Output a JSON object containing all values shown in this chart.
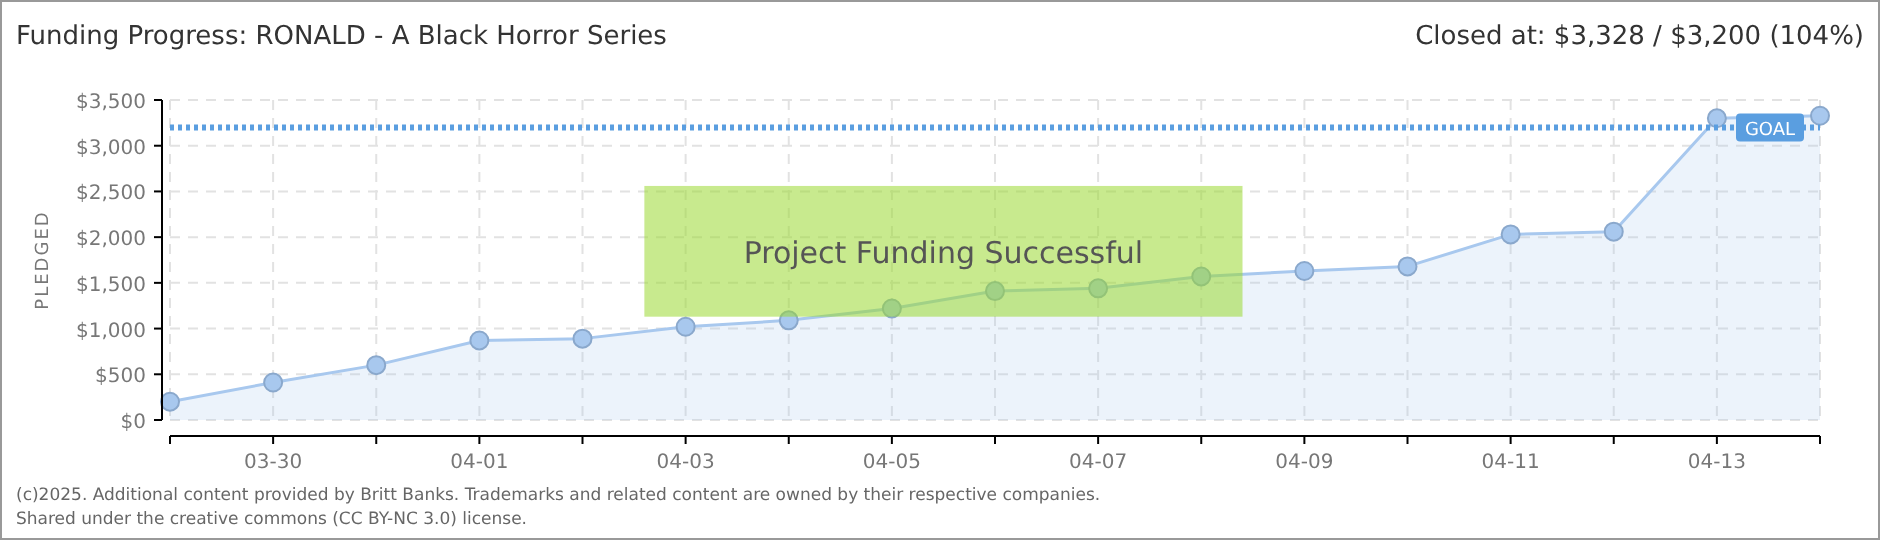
{
  "chart_data": {
    "type": "area",
    "title": "Funding Progress: RONALD - A Black Horror Series",
    "subtitle": "Closed at: $3,328 / $3,200 (104%)",
    "ylabel": "PLEDGED",
    "categories": [
      null,
      "03-30",
      null,
      "04-01",
      null,
      "04-03",
      null,
      "04-05",
      null,
      "04-07",
      null,
      "04-09",
      null,
      "04-11",
      null,
      "04-13",
      null
    ],
    "series": [
      {
        "color": "#a8c8ee",
        "values": [
          200,
          410,
          600,
          870,
          890,
          1020,
          1090,
          1220,
          1410,
          1440,
          1570,
          1630,
          1680,
          2030,
          2060,
          3300,
          3328
        ]
      }
    ],
    "ylim": [
      0,
      3500
    ],
    "yticks": [
      {
        "value": 0,
        "label": "$0"
      },
      {
        "value": 500,
        "label": "$500"
      },
      {
        "value": 1000,
        "label": "$1,000"
      },
      {
        "value": 1500,
        "label": "$1,500"
      },
      {
        "value": 2000,
        "label": "$2,000"
      },
      {
        "value": 2500,
        "label": "$2,500"
      },
      {
        "value": 3000,
        "label": "$3,000"
      },
      {
        "value": 3500,
        "label": "$3,500"
      }
    ],
    "ref_lines": [
      {
        "axis": "y",
        "value": 3200,
        "label": "GOAL",
        "color": "#5a9ee0",
        "line_style": "dotted"
      }
    ],
    "grid": true,
    "marker": "circle",
    "legend": false,
    "annotations": [
      "Project Funding Successful",
      "(c)2025. Additional content provided by Britt Banks. Trademarks and related content are owned by their respective companies.",
      "Shared under the creative commons (CC BY-NC 3.0) license."
    ]
  }
}
